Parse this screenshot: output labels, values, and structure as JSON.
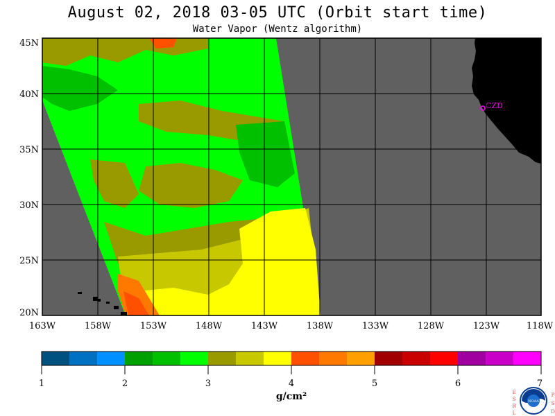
{
  "header": {
    "title": "August 02, 2018  03-05 UTC  (Orbit start time)",
    "subtitle": "Water Vapor (Wentz algorithm)"
  },
  "map": {
    "lat_labels": [
      "45N",
      "40N",
      "35N",
      "30N",
      "25N",
      "20N"
    ],
    "lon_labels": [
      "163W",
      "158W",
      "153W",
      "148W",
      "143W",
      "138W",
      "133W",
      "128W",
      "123W",
      "118W"
    ],
    "station_label": "CZD",
    "colors": {
      "no_data": "#606060",
      "land": "#000000",
      "grid": "#000000",
      "station": "#ff00ff"
    }
  },
  "colorbar": {
    "tick_labels": [
      "1",
      "2",
      "3",
      "4",
      "5",
      "6",
      "7"
    ],
    "unit": "g/cm²",
    "colors": [
      "#005080",
      "#0070c0",
      "#0090ff",
      "#00a000",
      "#00c000",
      "#00ff00",
      "#999900",
      "#c8c800",
      "#ffff00",
      "#ff5000",
      "#ff7800",
      "#ffa000",
      "#a00000",
      "#c80000",
      "#ff0000",
      "#a000a0",
      "#c800c8",
      "#ff00ff"
    ]
  },
  "logo": {
    "left_letters": [
      "E",
      "S",
      "R",
      "L"
    ],
    "center_text": "NOAA",
    "right_letters": [
      "P",
      "S",
      "D"
    ]
  }
}
